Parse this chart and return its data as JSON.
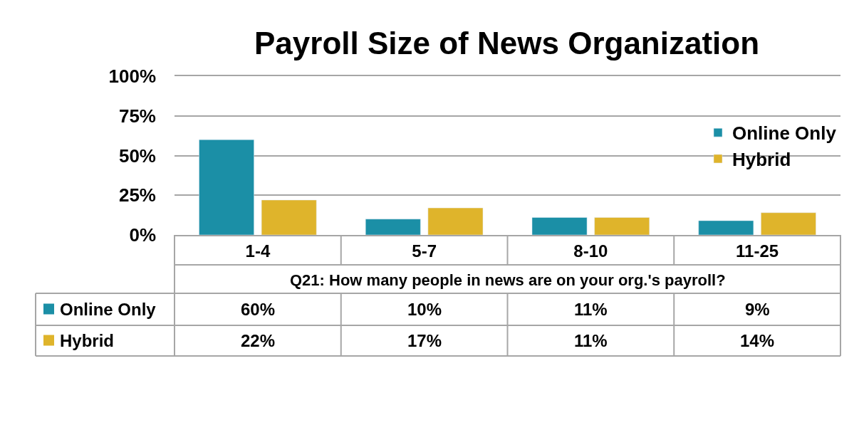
{
  "chart_data": {
    "type": "bar",
    "title": "Payroll Size of News Organization",
    "xlabel": "Q21: How many people in news are on your org.'s payroll?",
    "categories": [
      "1-4",
      "5-7",
      "8-10",
      "11-25"
    ],
    "series": [
      {
        "name": "Online Only",
        "color": "#1b8fa6",
        "values": [
          60,
          10,
          11,
          9
        ],
        "value_labels": [
          "60%",
          "10%",
          "11%",
          "9%"
        ]
      },
      {
        "name": "Hybrid",
        "color": "#dfb42b",
        "values": [
          22,
          17,
          11,
          14
        ],
        "value_labels": [
          "22%",
          "17%",
          "11%",
          "14%"
        ]
      }
    ],
    "ylim": [
      0,
      100
    ],
    "yticks": [
      {
        "value": 0,
        "label": "0%"
      },
      {
        "value": 25,
        "label": "25%"
      },
      {
        "value": 50,
        "label": "50%"
      },
      {
        "value": 75,
        "label": "75%"
      },
      {
        "value": 100,
        "label": "100%"
      }
    ],
    "grid": "y",
    "legend": "top right"
  }
}
